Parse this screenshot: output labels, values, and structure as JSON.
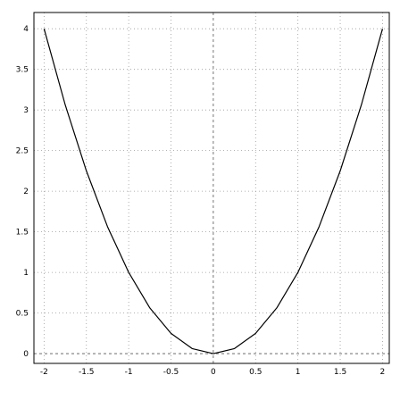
{
  "chart_data": {
    "type": "line",
    "title": "",
    "xlabel": "",
    "ylabel": "",
    "xlim": [
      -2.12,
      2.08
    ],
    "ylim": [
      -0.12,
      4.2
    ],
    "x_ticks": [
      -2,
      -1.5,
      -1,
      -0.5,
      0,
      0.5,
      1,
      1.5,
      2
    ],
    "x_tick_labels": [
      "-2",
      "-1.5",
      "-1",
      "-0.5",
      "0",
      "0.5",
      "1",
      "1.5",
      "2"
    ],
    "y_ticks": [
      0,
      0.5,
      1,
      1.5,
      2,
      2.5,
      3,
      3.5,
      4
    ],
    "y_tick_labels": [
      "0",
      "0.5",
      "1",
      "1.5",
      "2",
      "2.5",
      "3",
      "3.5",
      "4"
    ],
    "grid": true,
    "legend": "none",
    "series": [
      {
        "x": [
          -2,
          -1.75,
          -1.5,
          -1.25,
          -1,
          -0.75,
          -0.5,
          -0.25,
          0,
          0.25,
          0.5,
          0.75,
          1,
          1.25,
          1.5,
          1.75,
          2
        ],
        "y": [
          4,
          3.0625,
          2.25,
          1.5625,
          1,
          0.5625,
          0.25,
          0.0625,
          0,
          0.0625,
          0.25,
          0.5625,
          1,
          1.5625,
          2.25,
          3.0625,
          4
        ],
        "color": "#000000"
      }
    ],
    "reference_lines": [
      {
        "orientation": "vertical",
        "at": 0,
        "style": "dashed"
      },
      {
        "orientation": "horizontal",
        "at": 0,
        "style": "dashed"
      }
    ]
  }
}
